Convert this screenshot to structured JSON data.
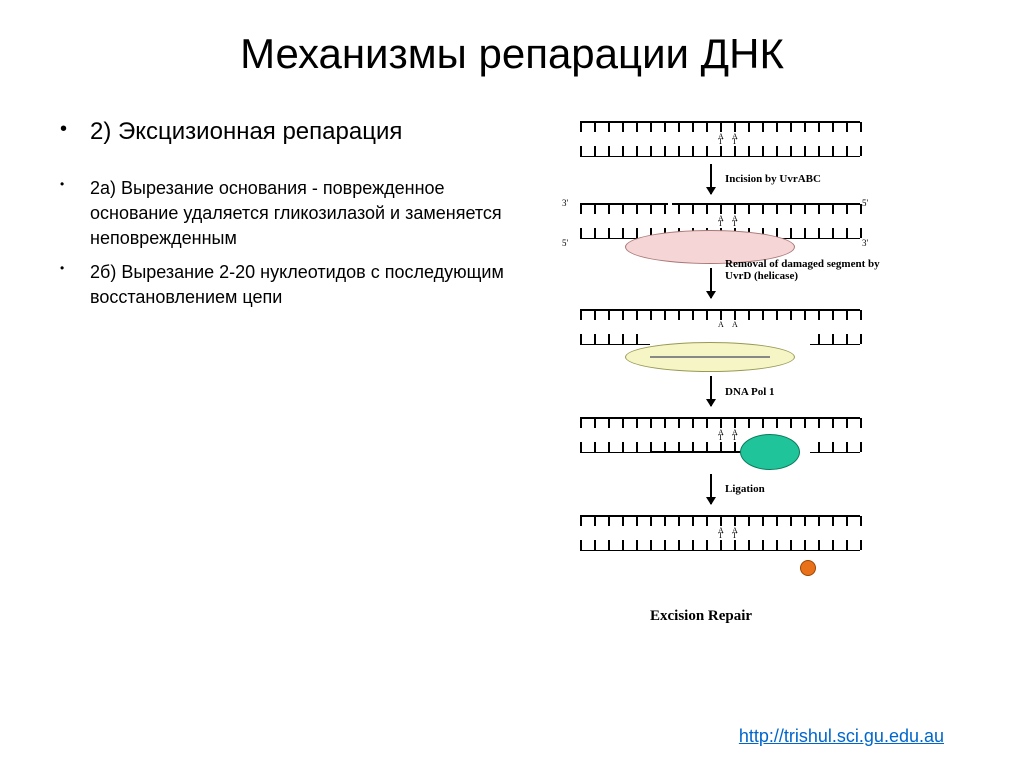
{
  "title": "Механизмы репарации ДНК",
  "mainItem": "2) Эксцизионная репарация",
  "subItems": [
    "2а) Вырезание основания - поврежденное основание удаляется гликозилазой и заменяется неповрежденным",
    "2б) Вырезание 2-20 нуклеотидов с последующим восстановлением цепи"
  ],
  "link": "http://trishul.sci.gu.edu.au",
  "diagram": {
    "bases": {
      "A": "A",
      "T": "T"
    },
    "endLabels": {
      "five": "5'",
      "three": "3'"
    },
    "steps": [
      {
        "label": "Incision by UvrABC"
      },
      {
        "label": "Removal of damaged segment by UvrD (helicase)"
      },
      {
        "label": "DNA Pol 1"
      },
      {
        "label": "Ligation"
      }
    ],
    "caption": "Excision Repair",
    "colors": {
      "ellipsePink": "#f5d5d5",
      "ellipseYellow": "#f5f5c5",
      "polGreen": "#1fc49a",
      "dotOrange": "#e8711a",
      "stroke": "#000000",
      "newStrand": "#000000"
    }
  }
}
